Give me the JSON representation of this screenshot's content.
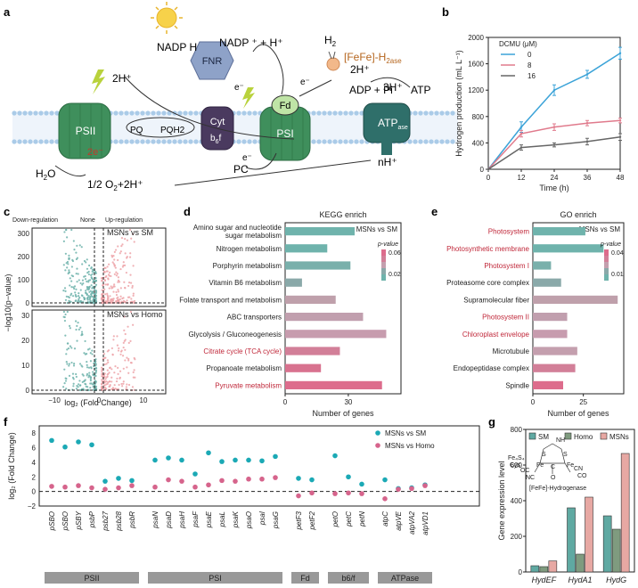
{
  "panel_a": {
    "label": "a",
    "nadph": "NADP H",
    "nadp_plus": "NADP ⁺ + H⁺",
    "fnr": "FNR",
    "h2": "H",
    "h2_sub": "2",
    "fefe": "[FeFe]-H",
    "fefe_sub": "2ase",
    "two_h_plus_right": "2H⁺",
    "adp_pi": "ADP + Pi",
    "three_h_plus": "3H⁺",
    "atp": "ATP",
    "two_h_plus_left": "2H⁺",
    "psii": "PSII",
    "pq": "PQ",
    "pqh2": "PQH2",
    "cyt": "Cyt",
    "cyt_sub": "b",
    "cyt_sub2": "6",
    "cyt_f": "f",
    "fd": "Fd",
    "psi": "PSI",
    "atpase": "ATP",
    "atpase_sub": "ase",
    "e_label": "e⁻",
    "two_e": "2e⁻",
    "h2o": "H",
    "h2o_sub": "2",
    "h2o_o": "O",
    "o2_eq": "1/2  O",
    "o2_sub": "2",
    "o2_tail": "+2H⁺",
    "pc": "PC",
    "nh_plus": "nH⁺"
  },
  "panel_b": {
    "label": "b",
    "chart_data": {
      "type": "line",
      "title": "",
      "xlabel": "Time (h)",
      "ylabel": "Hydrogen production (mL L⁻¹)",
      "legend_title": "DCMU (μM)",
      "x": [
        0,
        12,
        24,
        36,
        48
      ],
      "xlim": [
        0,
        48
      ],
      "ylim": [
        0,
        2000
      ],
      "xticks": [
        "0",
        "12",
        "24",
        "36",
        "48"
      ],
      "yticks": [
        "0",
        "400",
        "800",
        "1200",
        "1600",
        "2000"
      ],
      "series": [
        {
          "name": "0",
          "color": "#3ba3d8",
          "values": [
            0,
            640,
            1200,
            1440,
            1760
          ],
          "err": [
            0,
            80,
            80,
            60,
            90
          ]
        },
        {
          "name": "8",
          "color": "#e07a8c",
          "values": [
            0,
            540,
            640,
            700,
            740
          ],
          "err": [
            0,
            50,
            50,
            40,
            35
          ]
        },
        {
          "name": "16",
          "color": "#666666",
          "values": [
            0,
            330,
            370,
            420,
            490
          ],
          "err": [
            0,
            40,
            30,
            50,
            50
          ]
        }
      ]
    }
  },
  "panel_c": {
    "label": "c",
    "legend_down": "Down-regulation",
    "legend_none": "None",
    "legend_up": "Up-regulation",
    "top_title": "MSNs vs SM",
    "bottom_title": "MSNs vs Homo",
    "ylabel": "−log10(p−value)",
    "xlabel": "log₂ (Fold Change)",
    "yticks_top": [
      "0",
      "100",
      "200",
      "300"
    ],
    "yticks_bottom": [
      "0",
      "10",
      "20",
      "30"
    ],
    "xticks": [
      "−10",
      "0",
      "10"
    ]
  },
  "panel_d": {
    "label": "d",
    "chart_data": {
      "type": "bar",
      "title": "KEGG enrich",
      "subtitle": "MSNs vs SM",
      "xlabel": "Number of genes",
      "xlim": [
        0,
        55
      ],
      "xticks": [
        "0",
        "30"
      ],
      "legend_title": "p-value",
      "legend_ticks": [
        "0.06",
        "0.02"
      ],
      "categories": [
        "Amino sugar and nucleotide sugar metabolism",
        "Nitrogen metabolism",
        "Porphyrin metabolism",
        "Vitamin B6 metabolism",
        "Folate transport and metabolism",
        "ABC transporters",
        "Glycolysis / Gluconeogenesis",
        "Citrate cycle (TCA cycle)",
        "Propanoate metabolism",
        "Pyruvate metabolism"
      ],
      "cat_lines": [
        [
          "Amino sugar and nucleotide",
          "sugar metabolism"
        ],
        [
          "Nitrogen metabolism"
        ],
        [
          "Porphyrin metabolism"
        ],
        [
          "Vitamin B6 metabolism"
        ],
        [
          "Folate transport and metabolism"
        ],
        [
          "ABC transporters"
        ],
        [
          "Glycolysis / Gluconeogenesis"
        ],
        [
          "Citrate cycle (TCA cycle)"
        ],
        [
          "Propanoate metabolism"
        ],
        [
          "Pyruvate metabolism"
        ]
      ],
      "values": [
        33,
        20,
        31,
        8,
        24,
        37,
        48,
        26,
        17,
        46
      ],
      "colors": [
        "#6fb3ac",
        "#6fb3ac",
        "#79b0ab",
        "#8aa9a9",
        "#bfa0ab",
        "#c19fae",
        "#c79cae",
        "#d27f98",
        "#d8728f",
        "#dd6c8c"
      ],
      "highlight": [
        false,
        false,
        false,
        false,
        false,
        false,
        false,
        true,
        false,
        true
      ]
    }
  },
  "panel_e": {
    "label": "e",
    "chart_data": {
      "type": "bar",
      "title": "GO enrich",
      "subtitle": "MSNs vs SM",
      "xlabel": "Number of genes",
      "xlim": [
        0,
        45
      ],
      "xticks": [
        "0",
        "25"
      ],
      "legend_title": "p-value",
      "legend_ticks": [
        "0.04",
        "0.01"
      ],
      "categories": [
        "Photosystem",
        "Photosynthetic membrane",
        "Photosystem I",
        "Proteasome core complex",
        "Supramolecular fiber",
        "Photosystem II",
        "Chloroplast envelope",
        "Microtubule",
        "Endopeptidase complex",
        "Spindle"
      ],
      "values": [
        26,
        35,
        9,
        14,
        42,
        17,
        17,
        22,
        21,
        15
      ],
      "colors": [
        "#6fb3ac",
        "#6fb3ac",
        "#79b0ab",
        "#8aa9a9",
        "#bfa0ab",
        "#c19fae",
        "#c79cae",
        "#c49fae",
        "#d27f98",
        "#dd6c8c"
      ],
      "highlight": [
        true,
        true,
        true,
        false,
        false,
        true,
        true,
        false,
        false,
        false
      ]
    }
  },
  "panel_f": {
    "label": "f",
    "chart_data": {
      "type": "scatter",
      "ylabel": "log₂ (Fold Change)",
      "ylim": [
        -2,
        9
      ],
      "yticks": [
        "−2",
        "0",
        "2",
        "4",
        "6",
        "8"
      ],
      "legend": [
        "MSNs vs SM",
        "MSNs vs Homo"
      ],
      "colors": [
        "#1ba9b5",
        "#d6648c"
      ],
      "categories": [
        "pSBO",
        "pSBO",
        "pSBY",
        "psbP",
        "psb27",
        "psb28",
        "psbR",
        "psaN",
        "psaD",
        "psaH",
        "psaF",
        "psaE",
        "psaL",
        "psaK",
        "psaO",
        "psaI",
        "psaG",
        "petF3",
        "petF2",
        "petO",
        "petC",
        "petN",
        "atpC",
        "atpVE",
        "atpVA2",
        "atpVD1"
      ],
      "sm": [
        7.0,
        6.1,
        6.8,
        6.4,
        1.4,
        1.8,
        1.5,
        4.3,
        4.6,
        4.3,
        2.4,
        5.3,
        4.1,
        4.3,
        4.3,
        4.2,
        4.8,
        1.8,
        1.6,
        4.9,
        2.0,
        1.0,
        1.6,
        0.4,
        0.5,
        0.9
      ],
      "homo": [
        0.7,
        0.6,
        0.8,
        0.5,
        0.3,
        0.5,
        0.8,
        0.6,
        1.6,
        1.4,
        0.6,
        0.9,
        1.5,
        1.4,
        1.7,
        1.7,
        1.9,
        -0.6,
        -0.2,
        -0.3,
        -0.2,
        -0.3,
        -1.0,
        0.3,
        0.4,
        0.8
      ],
      "groups": [
        {
          "name": "PSII",
          "from": 0,
          "to": 6
        },
        {
          "name": "PSI",
          "from": 7,
          "to": 16
        },
        {
          "name": "Fd",
          "from": 17,
          "to": 18
        },
        {
          "name": "b6/f",
          "from": 19,
          "to": 21
        },
        {
          "name": "ATPase",
          "from": 22,
          "to": 25
        }
      ]
    }
  },
  "panel_g": {
    "label": "g",
    "chart_data": {
      "type": "bar",
      "ylabel": "Gene expression level",
      "ylim": [
        0,
        800
      ],
      "yticks": [
        "0",
        "200",
        "400",
        "600",
        "800"
      ],
      "categories": [
        "HydEF",
        "HydA1",
        "HydG"
      ],
      "series": [
        {
          "name": "SM",
          "color": "#5fa9a2",
          "values": [
            35,
            360,
            315
          ]
        },
        {
          "name": "Homo",
          "color": "#7f9b7f",
          "values": [
            30,
            100,
            240
          ]
        },
        {
          "name": "MSNs",
          "color": "#e7a8a3",
          "values": [
            62,
            420,
            665
          ]
        }
      ],
      "inset_caption": "[FeFe]-Hydrogenase",
      "inset_labels": [
        "NH",
        "S",
        "S",
        "Fe",
        "Fe",
        "Fe₄S₄",
        "Cys",
        "OC",
        "NC",
        "CO",
        "CN",
        "C",
        "O"
      ]
    }
  }
}
